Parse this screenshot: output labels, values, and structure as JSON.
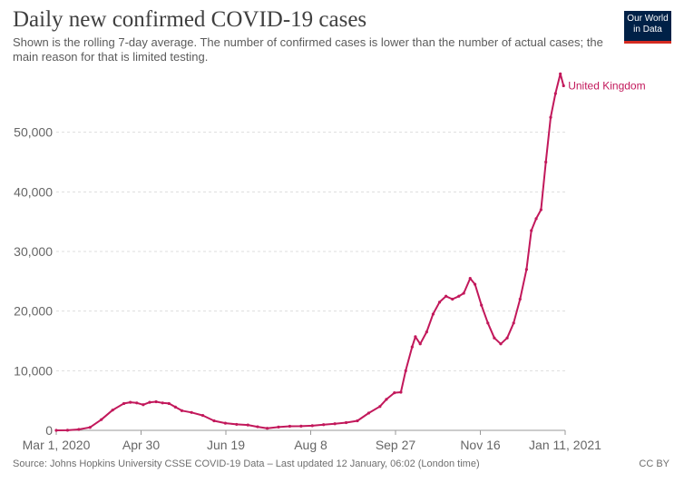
{
  "header": {
    "title": "Daily new confirmed COVID-19 cases",
    "subtitle": "Shown is the rolling 7-day average. The number of confirmed cases is lower than the number of actual cases; the main reason for that is limited testing.",
    "logo_line1": "Our World",
    "logo_line2": "in Data"
  },
  "footer": {
    "source": "Source: Johns Hopkins University CSSE COVID-19 Data – Last updated 12 January, 06:02 (London time)",
    "license": "CC BY"
  },
  "colors": {
    "series": "#c2185b",
    "grid": "#dddddd",
    "axis": "#999999",
    "logo_bg": "#002147",
    "logo_accent": "#d42b21"
  },
  "chart_data": {
    "type": "line",
    "title": "Daily new confirmed COVID-19 cases",
    "xlabel": "",
    "ylabel": "",
    "x_ticks": [
      "Mar 1, 2020",
      "Apr 30",
      "Jun 19",
      "Aug 8",
      "Sep 27",
      "Nov 16",
      "Jan 11, 2021"
    ],
    "y_ticks": [
      0,
      10000,
      20000,
      30000,
      40000,
      50000
    ],
    "y_tick_labels": [
      "0",
      "10,000",
      "20,000",
      "30,000",
      "40,000",
      "50,000"
    ],
    "ylim": [
      0,
      60000
    ],
    "grid": true,
    "series": [
      {
        "name": "United Kingdom",
        "points": [
          [
            "2020-03-01",
            0
          ],
          [
            "2020-03-08",
            20
          ],
          [
            "2020-03-15",
            150
          ],
          [
            "2020-03-22",
            500
          ],
          [
            "2020-03-29",
            1800
          ],
          [
            "2020-04-05",
            3400
          ],
          [
            "2020-04-12",
            4500
          ],
          [
            "2020-04-16",
            4700
          ],
          [
            "2020-04-20",
            4600
          ],
          [
            "2020-04-24",
            4300
          ],
          [
            "2020-04-28",
            4700
          ],
          [
            "2020-05-02",
            4800
          ],
          [
            "2020-05-06",
            4600
          ],
          [
            "2020-05-10",
            4500
          ],
          [
            "2020-05-14",
            3900
          ],
          [
            "2020-05-18",
            3300
          ],
          [
            "2020-05-24",
            3000
          ],
          [
            "2020-05-31",
            2500
          ],
          [
            "2020-06-07",
            1600
          ],
          [
            "2020-06-14",
            1200
          ],
          [
            "2020-06-21",
            1000
          ],
          [
            "2020-06-28",
            900
          ],
          [
            "2020-07-04",
            600
          ],
          [
            "2020-07-10",
            350
          ],
          [
            "2020-07-17",
            550
          ],
          [
            "2020-07-24",
            680
          ],
          [
            "2020-07-31",
            700
          ],
          [
            "2020-08-07",
            780
          ],
          [
            "2020-08-14",
            950
          ],
          [
            "2020-08-21",
            1100
          ],
          [
            "2020-08-28",
            1300
          ],
          [
            "2020-09-04",
            1600
          ],
          [
            "2020-09-11",
            2900
          ],
          [
            "2020-09-18",
            4000
          ],
          [
            "2020-09-22",
            5200
          ],
          [
            "2020-09-27",
            6300
          ],
          [
            "2020-10-01",
            6400
          ],
          [
            "2020-10-04",
            10000
          ],
          [
            "2020-10-08",
            14000
          ],
          [
            "2020-10-10",
            15700
          ],
          [
            "2020-10-13",
            14500
          ],
          [
            "2020-10-17",
            16500
          ],
          [
            "2020-10-21",
            19500
          ],
          [
            "2020-10-25",
            21500
          ],
          [
            "2020-10-29",
            22500
          ],
          [
            "2020-11-02",
            22000
          ],
          [
            "2020-11-06",
            22500
          ],
          [
            "2020-11-09",
            23000
          ],
          [
            "2020-11-13",
            25500
          ],
          [
            "2020-11-16",
            24500
          ],
          [
            "2020-11-20",
            21000
          ],
          [
            "2020-11-24",
            18000
          ],
          [
            "2020-11-28",
            15500
          ],
          [
            "2020-12-02",
            14500
          ],
          [
            "2020-12-06",
            15500
          ],
          [
            "2020-12-10",
            18000
          ],
          [
            "2020-12-14",
            22000
          ],
          [
            "2020-12-18",
            27000
          ],
          [
            "2020-12-21",
            33500
          ],
          [
            "2020-12-24",
            35500
          ],
          [
            "2020-12-27",
            37000
          ],
          [
            "2020-12-30",
            45000
          ],
          [
            "2021-01-02",
            52500
          ],
          [
            "2021-01-05",
            56500
          ],
          [
            "2021-01-08",
            59800
          ],
          [
            "2021-01-10",
            57800
          ]
        ]
      }
    ]
  }
}
